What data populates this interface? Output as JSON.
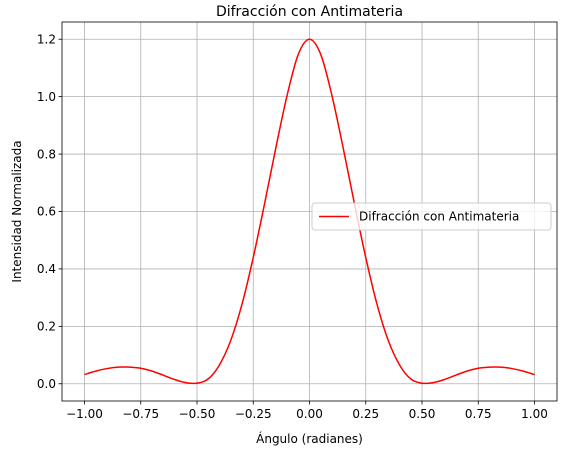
{
  "chart_data": {
    "type": "line",
    "title": "Difracción con Antimateria",
    "xlabel": "Ángulo (radianes)",
    "ylabel": "Intensidad Normalizada",
    "xlim": [
      -1.1,
      1.1
    ],
    "ylim": [
      -0.06,
      1.26
    ],
    "xticks": [
      -1.0,
      -0.75,
      -0.5,
      -0.25,
      0.0,
      0.25,
      0.5,
      0.75,
      1.0
    ],
    "xtick_labels": [
      "−1.00",
      "−0.75",
      "−0.50",
      "−0.25",
      "0.00",
      "0.25",
      "0.50",
      "0.75",
      "1.00"
    ],
    "yticks": [
      0.0,
      0.2,
      0.4,
      0.6,
      0.8,
      1.0,
      1.2
    ],
    "ytick_labels": [
      "0.0",
      "0.2",
      "0.4",
      "0.6",
      "0.8",
      "1.0",
      "1.2"
    ],
    "grid": true,
    "legend_position": "center-right",
    "series": [
      {
        "name": "Difracción con Antimateria",
        "color": "#ff0000",
        "x": [
          -1.0,
          -0.95,
          -0.9,
          -0.85,
          -0.8,
          -0.75,
          -0.7,
          -0.65,
          -0.6,
          -0.55,
          -0.5,
          -0.45,
          -0.4,
          -0.35,
          -0.3,
          -0.25,
          -0.2,
          -0.15,
          -0.1,
          -0.05,
          0.0,
          0.05,
          0.1,
          0.15,
          0.2,
          0.25,
          0.3,
          0.35,
          0.4,
          0.45,
          0.5,
          0.55,
          0.6,
          0.65,
          0.7,
          0.75,
          0.8,
          0.85,
          0.9,
          0.95,
          1.0
        ],
        "y": [
          0.032,
          0.044,
          0.053,
          0.058,
          0.058,
          0.054,
          0.044,
          0.03,
          0.015,
          0.004,
          0.002,
          0.017,
          0.066,
          0.151,
          0.277,
          0.44,
          0.626,
          0.82,
          1.003,
          1.147,
          1.2,
          1.147,
          1.003,
          0.82,
          0.626,
          0.44,
          0.277,
          0.151,
          0.066,
          0.017,
          0.002,
          0.004,
          0.015,
          0.03,
          0.044,
          0.054,
          0.058,
          0.058,
          0.053,
          0.044,
          0.032
        ]
      }
    ]
  }
}
